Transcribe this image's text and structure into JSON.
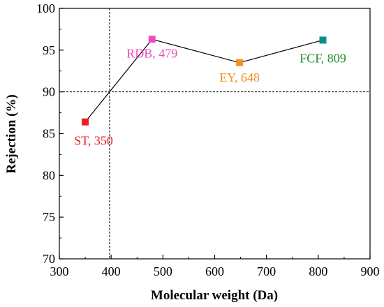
{
  "chart_data": {
    "type": "line",
    "xlabel": "Molecular weight (Da)",
    "ylabel": "Rejection (%)",
    "xlim": [
      300,
      900
    ],
    "ylim": [
      70,
      100
    ],
    "xticks": [
      300,
      400,
      500,
      600,
      700,
      800,
      900
    ],
    "yticks": [
      70,
      75,
      80,
      85,
      90,
      95,
      100
    ],
    "grid": false,
    "points": [
      {
        "label": "ST, 350",
        "x": 350,
        "y": 86.4,
        "color": "#ee1c24"
      },
      {
        "label": "RDB, 479",
        "x": 479,
        "y": 96.3,
        "color": "#ec4dbb"
      },
      {
        "label": "EY, 648",
        "x": 648,
        "y": 93.5,
        "color": "#f7901e"
      },
      {
        "label": "FCF, 809",
        "x": 809,
        "y": 96.2,
        "color": "#0d8c8c"
      }
    ],
    "point_label_colors": [
      "#ee1c24",
      "#ec4dbb",
      "#f7901e",
      "#1e8f2a"
    ],
    "reference_lines": {
      "vertical_x": 397,
      "horizontal_y": 90
    }
  }
}
